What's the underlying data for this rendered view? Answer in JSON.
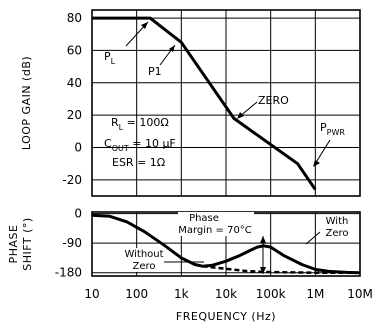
{
  "chart_data": [
    {
      "type": "line",
      "x_scale": "log",
      "xlim": [
        10,
        10000000
      ],
      "ylim": [
        -30,
        85
      ],
      "ylabel": "LOOP GAIN (dB)",
      "y_ticks": [
        "80",
        "60",
        "40",
        "20",
        "0",
        "-20"
      ],
      "y_tick_values": [
        80,
        60,
        40,
        20,
        0,
        -20
      ],
      "grid": true,
      "series": [
        {
          "x": [
            10,
            200,
            1000,
            15000,
            400000,
            1000000
          ],
          "y": [
            80,
            80,
            65,
            18,
            -10,
            -26
          ]
        }
      ],
      "annotations": {
        "pl": "P",
        "pl_sub": "L",
        "p1": "P1",
        "zero": "ZERO",
        "ppwr": "P",
        "ppwr_sub": "PWR",
        "rl_main": "R",
        "rl_sub": "L",
        "rl_val": " = 100Ω",
        "cout_main": "C",
        "cout_sub": "OUT",
        "cout_val": " = 10 µF",
        "esr": "ESR = 1Ω"
      }
    },
    {
      "type": "line",
      "x_scale": "log",
      "xlim": [
        10,
        10000000
      ],
      "ylim": [
        -190,
        5
      ],
      "ylabel_line1": "PHASE",
      "ylabel_line2": "SHIFT (°)",
      "y_ticks": [
        "0",
        "-90",
        "-180"
      ],
      "y_tick_values": [
        0,
        -90,
        -180
      ],
      "x_ticks": [
        "10",
        "100",
        "1k",
        "10k",
        "100k",
        "1M",
        "10M"
      ],
      "x_tick_values": [
        10,
        100,
        1000,
        10000,
        100000,
        1000000,
        10000000
      ],
      "xlabel": "FREQUENCY (Hz)",
      "grid": true,
      "series": [
        {
          "name": "With Zero",
          "x": [
            10,
            25,
            60,
            150,
            400,
            1000,
            2000,
            3000,
            5000,
            10000,
            20000,
            35000,
            50000,
            70000,
            100000,
            200000,
            500000,
            1000000,
            2000000,
            5000000,
            10000000
          ],
          "y": [
            -5,
            -8,
            -25,
            -55,
            -95,
            -135,
            -155,
            -160,
            -157,
            -145,
            -128,
            -112,
            -102,
            -98,
            -102,
            -128,
            -155,
            -170,
            -176,
            -179,
            -180
          ]
        },
        {
          "name": "Without Zero",
          "x": [
            3000,
            10000,
            30000,
            100000,
            1000000,
            10000000
          ],
          "y": [
            -160,
            -168,
            -175,
            -178,
            -180,
            -180
          ]
        }
      ],
      "annotations": {
        "phase": "Phase",
        "margin": "Margin = 70°C",
        "with": "With",
        "with_zero": "Zero",
        "without": "Without",
        "without_zero": "Zero"
      }
    }
  ]
}
